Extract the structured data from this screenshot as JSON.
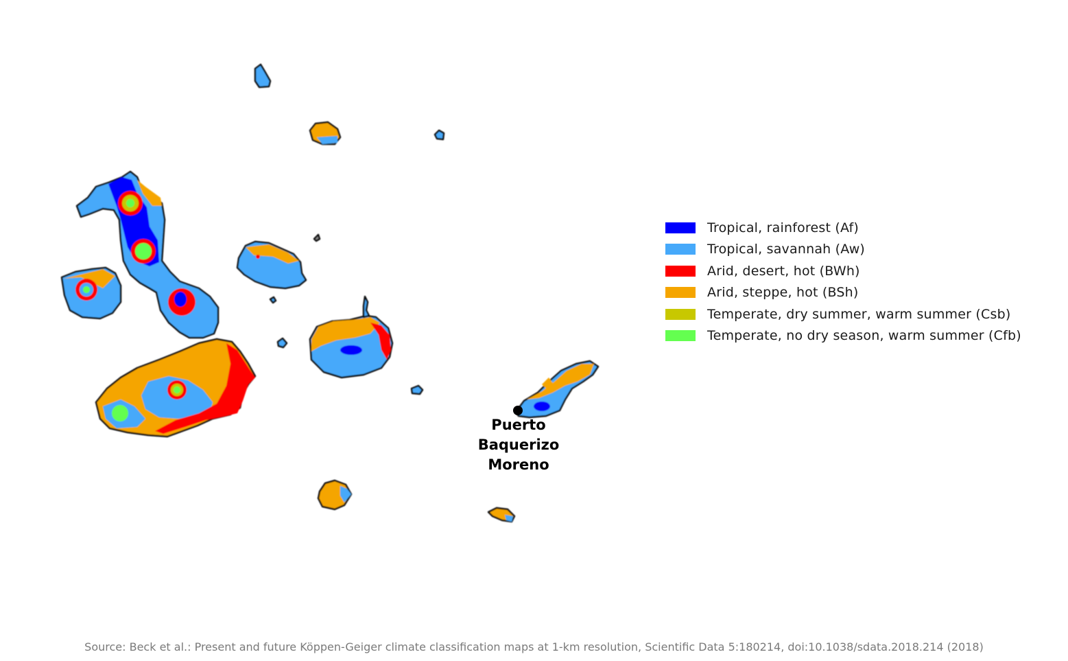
{
  "legend": [
    {
      "label": "Tropical, rainforest (Af)",
      "color": "#0000fe"
    },
    {
      "label": "Tropical, savannah (Aw)",
      "color": "#46a9fa"
    },
    {
      "label": "Arid, desert, hot (BWh)",
      "color": "#fe0000"
    },
    {
      "label": "Arid, steppe, hot (BSh)",
      "color": "#f5a500"
    },
    {
      "label": "Temperate, dry summer, warm summer (Csb)",
      "color": "#c8c800"
    },
    {
      "label": "Temperate, no dry season, warm summer (Cfb)",
      "color": "#64ff50"
    }
  ],
  "city": {
    "lines": [
      "Puerto",
      "Baquerizo",
      "Moreno"
    ],
    "marker_color": "#000000"
  },
  "source": "Source: Beck et al.: Present and future Köppen-Geiger climate classification maps at 1-km resolution, Scientific Data 5:180214, doi:10.1038/sdata.2018.214 (2018)"
}
